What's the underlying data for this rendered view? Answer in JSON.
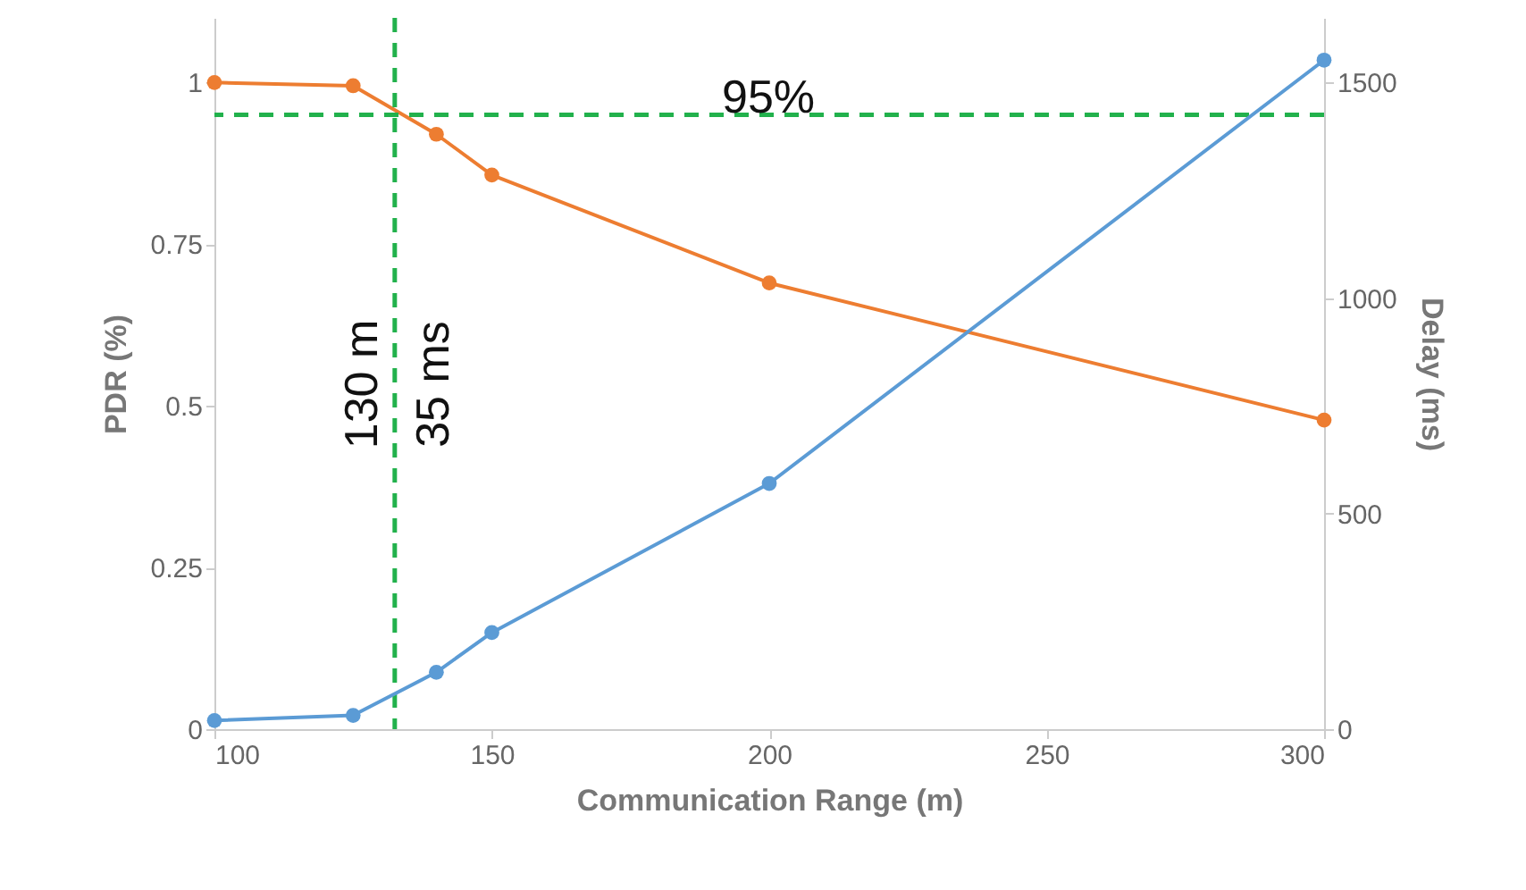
{
  "chart_data": {
    "type": "line",
    "xlabel": "Communication Range (m)",
    "ylabel": "PDR (%)",
    "y2label": "Delay (ms)",
    "x": [
      100,
      125,
      140,
      150,
      200,
      300
    ],
    "series": [
      {
        "color": "#ed7d31",
        "values": [
          1.0,
          0.995,
          0.92,
          0.857,
          0.69,
          0.478
        ]
      },
      {
        "color": "#5b9bd5",
        "axis": "y2",
        "values": [
          20,
          32,
          132,
          224,
          570,
          1552
        ]
      }
    ],
    "xlim": [
      100,
      300
    ],
    "xticks": [
      100,
      150,
      200,
      250,
      300
    ],
    "ylim": [
      0,
      1.1
    ],
    "yticks": [
      0,
      0.25,
      0.5,
      0.75,
      1
    ],
    "y2lim": [
      0,
      1650
    ],
    "y2ticks": [
      0,
      500,
      1000,
      1500
    ],
    "ref_lines": [
      {
        "axis": "y",
        "value": 0.95,
        "color": "#22b14c",
        "line_style": "dashed"
      },
      {
        "axis": "x",
        "value": 132.5,
        "color": "#22b14c",
        "line_style": "dashed"
      }
    ],
    "annotations": [
      "95%",
      "130 m",
      "35 ms"
    ],
    "marker": "circle",
    "line_style": "solid",
    "grid": false
  }
}
